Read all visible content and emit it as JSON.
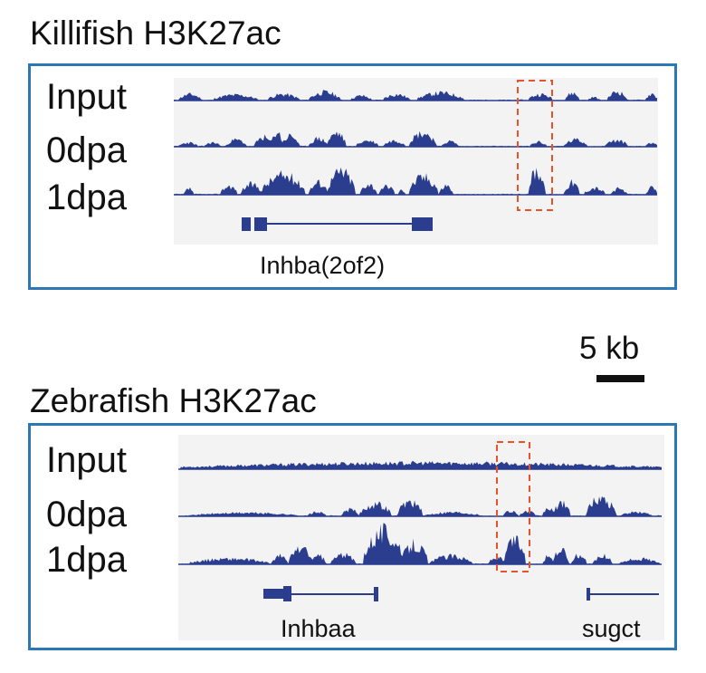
{
  "colors": {
    "track": "#2a3d8f",
    "frame": "#2b78b5",
    "highlight": "#e8532b",
    "background_track": "#f3f3f3"
  },
  "killifish": {
    "title": "Killifish H3K27ac",
    "tracks": [
      {
        "label": "Input"
      },
      {
        "label": "0dpa"
      },
      {
        "label": "1dpa"
      }
    ],
    "gene": "Inhba(2of2)"
  },
  "zebrafish": {
    "title": "Zebrafish H3K27ac",
    "tracks": [
      {
        "label": "Input"
      },
      {
        "label": "0dpa"
      },
      {
        "label": "1dpa"
      }
    ],
    "genes": [
      "Inhbaa",
      "sugct"
    ]
  },
  "scale": {
    "label": "5 kb"
  }
}
